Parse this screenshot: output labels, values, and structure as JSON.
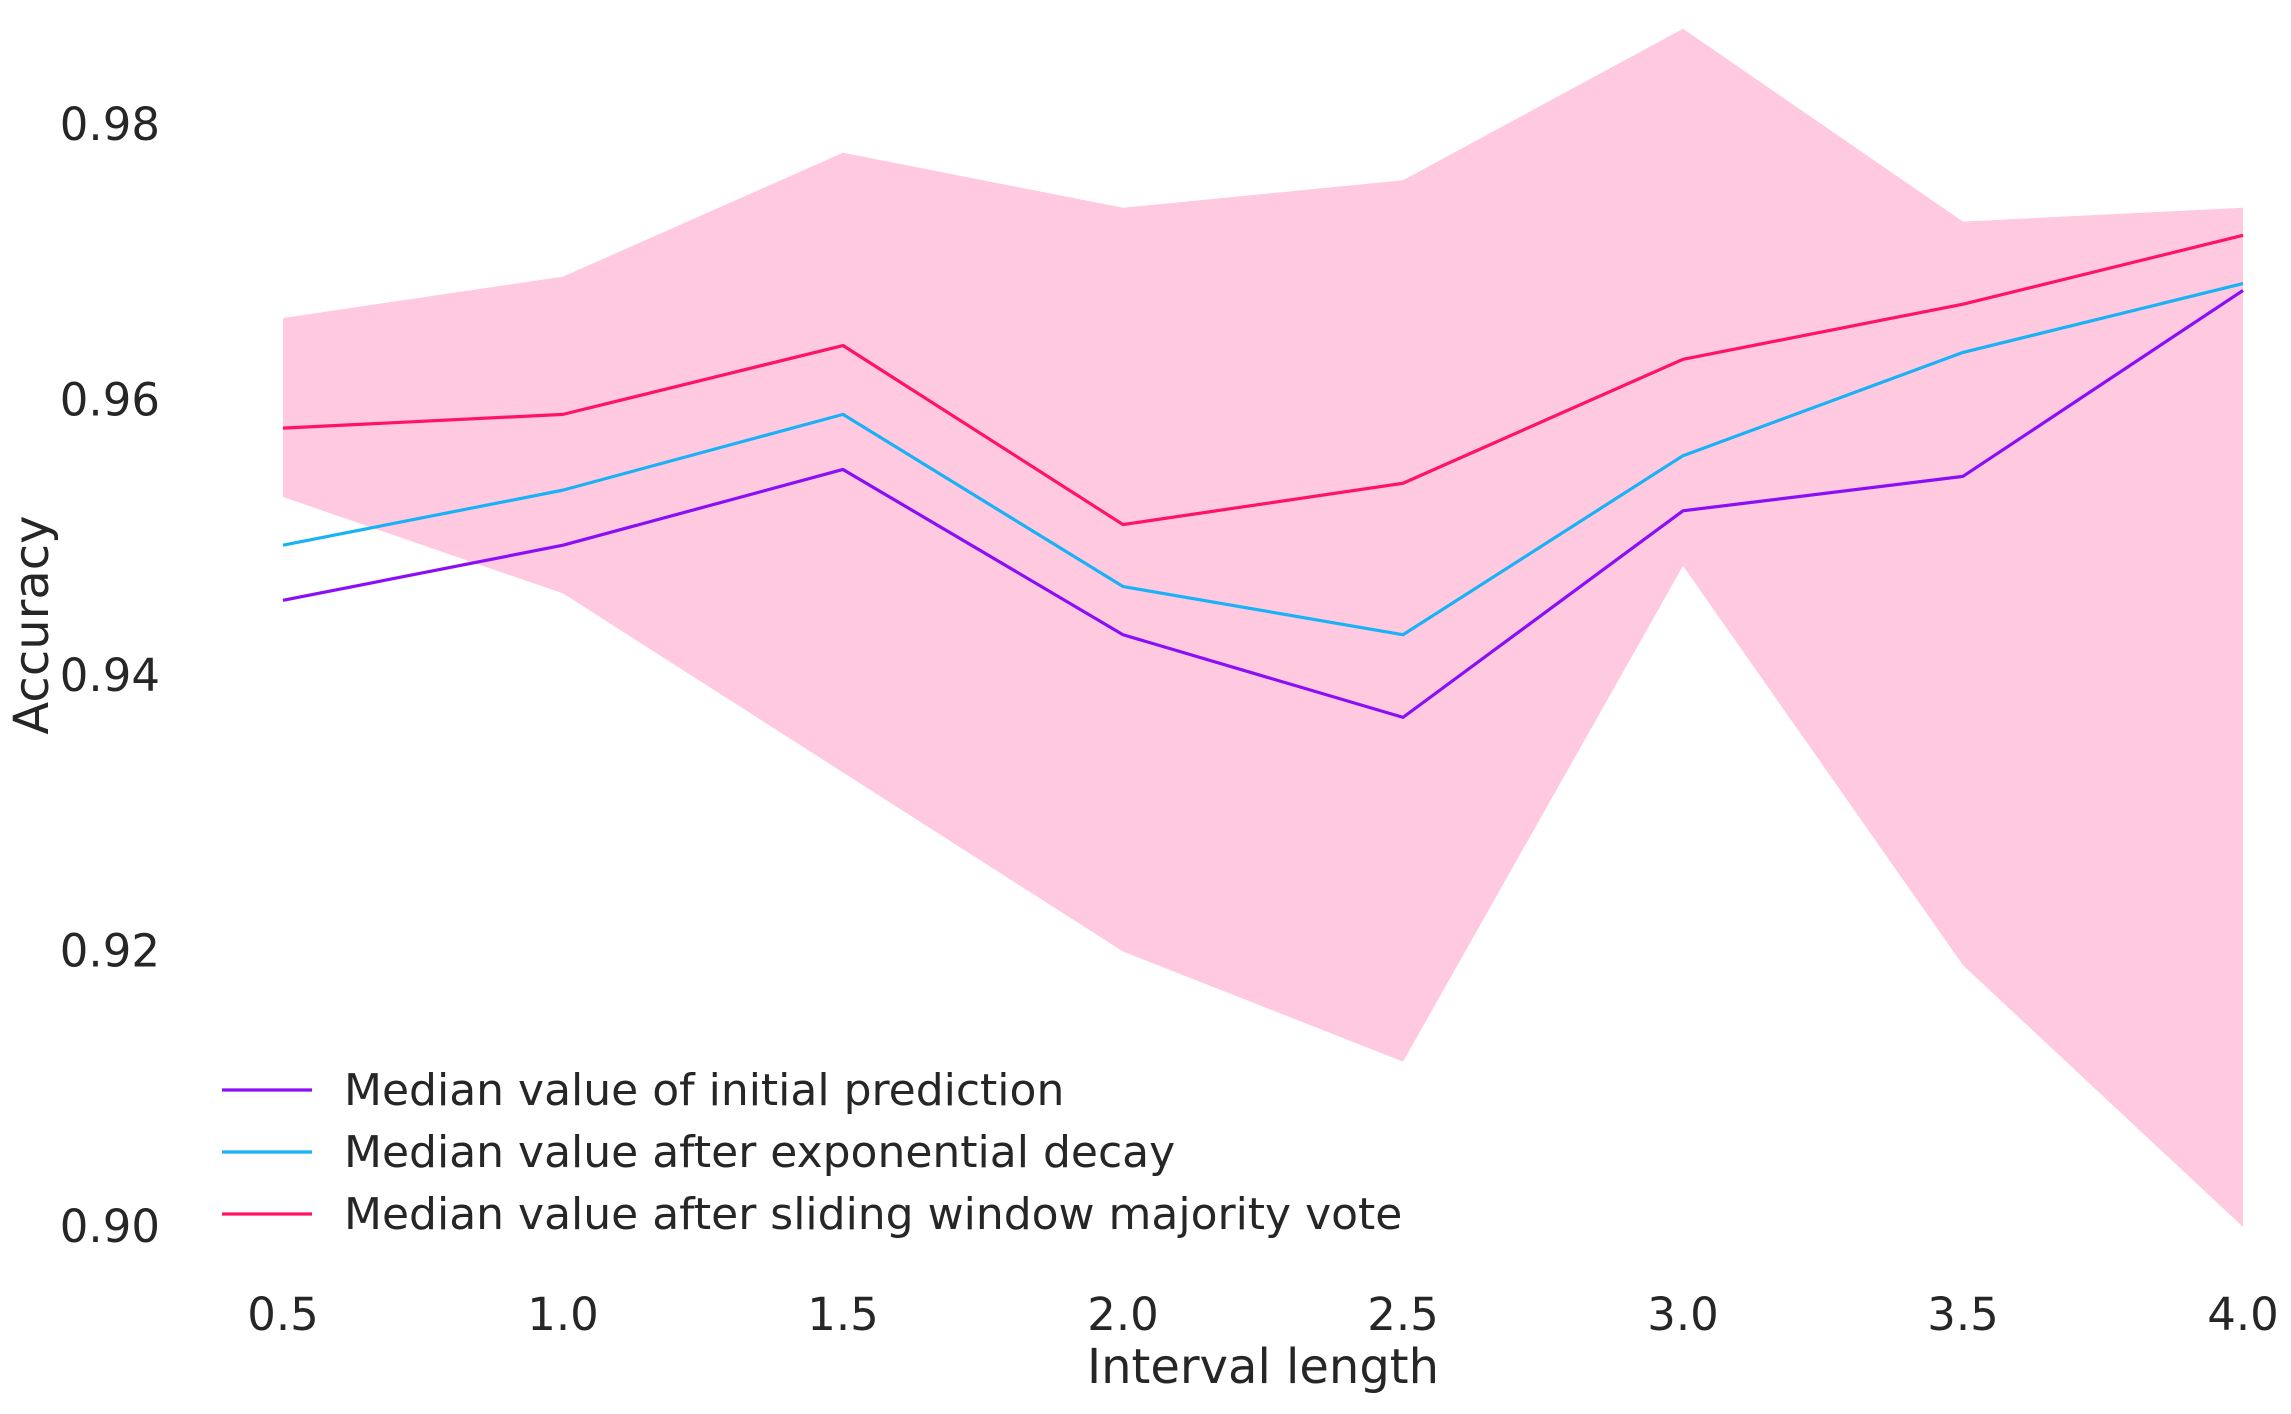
{
  "chart_data": {
    "type": "line",
    "title": "",
    "xlabel": "Interval length",
    "ylabel": "Accuracy",
    "x": [
      0.5,
      1.0,
      1.5,
      2.0,
      2.5,
      3.0,
      3.5,
      4.0
    ],
    "x_tick_labels": [
      "0.5",
      "1.0",
      "1.5",
      "2.0",
      "2.5",
      "3.0",
      "3.5",
      "4.0"
    ],
    "y_ticks": [
      0.9,
      0.92,
      0.94,
      0.96,
      0.98
    ],
    "y_tick_labels": [
      "0.90",
      "0.92",
      "0.94",
      "0.96",
      "0.98"
    ],
    "xlim": [
      0.5,
      4.0
    ],
    "ylim": [
      0.896,
      0.988
    ],
    "grid": false,
    "legend_position": "lower-left",
    "band": {
      "color": "#ffc9df",
      "upper": [
        0.966,
        0.969,
        0.978,
        0.974,
        0.976,
        0.987,
        0.973,
        0.974
      ],
      "lower": [
        0.953,
        0.946,
        0.933,
        0.92,
        0.912,
        0.948,
        0.919,
        0.9
      ]
    },
    "series": [
      {
        "name": "Median value of initial prediction",
        "color": "#8a0ff5",
        "values": [
          0.9455,
          0.9495,
          0.955,
          0.943,
          0.937,
          0.952,
          0.9545,
          0.968
        ]
      },
      {
        "name": "Median value after exponential decay",
        "color": "#1ab2f5",
        "values": [
          0.9495,
          0.9535,
          0.959,
          0.9465,
          0.943,
          0.956,
          0.9635,
          0.9685
        ]
      },
      {
        "name": "Median value after sliding window majority vote",
        "color": "#ff1465",
        "values": [
          0.958,
          0.959,
          0.964,
          0.951,
          0.954,
          0.963,
          0.967,
          0.972
        ]
      }
    ]
  }
}
